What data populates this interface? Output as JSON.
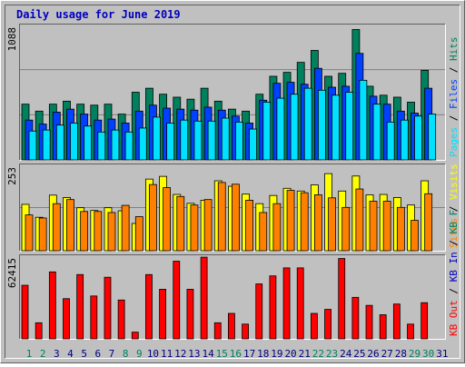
{
  "colors": {
    "frame_bg": "#c0c0c0",
    "title": "#0000c0",
    "hits": "#00805c",
    "files": "#0040ff",
    "pages": "#00e0ff",
    "visits": "#ffff00",
    "sites": "#ff8000",
    "kbytes": "#ff0000",
    "day_weekend": "#00805c",
    "day_weekday": "#000080",
    "legend_sep": "#000000",
    "kb_in": "#0000c0",
    "kb_out": "#00805c"
  },
  "chart_data": [
    {
      "type": "bar",
      "title": "Daily usage for June 2019",
      "ylabel": "1088",
      "ylim": [
        0,
        1088
      ],
      "categories": [
        "1",
        "2",
        "3",
        "4",
        "5",
        "6",
        "7",
        "8",
        "9",
        "10",
        "11",
        "12",
        "13",
        "14",
        "15",
        "16",
        "17",
        "18",
        "19",
        "20",
        "21",
        "22",
        "23",
        "24",
        "25",
        "26",
        "27",
        "28",
        "29",
        "30",
        "31"
      ],
      "weekend_days": [
        "1",
        "2",
        "8",
        "9",
        "15",
        "16",
        "22",
        "23",
        "29",
        "30"
      ],
      "series": [
        {
          "name": "Hits",
          "values": [
            448,
            392,
            448,
            472,
            448,
            440,
            448,
            368,
            544,
            576,
            528,
            504,
            488,
            576,
            472,
            408,
            392,
            528,
            672,
            704,
            784,
            880,
            672,
            696,
            1048,
            592,
            520,
            504,
            464,
            720,
            0
          ]
        },
        {
          "name": "Files",
          "values": [
            320,
            288,
            384,
            408,
            368,
            320,
            328,
            296,
            392,
            440,
            416,
            408,
            400,
            424,
            400,
            352,
            296,
            480,
            616,
            624,
            608,
            736,
            584,
            592,
            856,
            512,
            448,
            392,
            376,
            576,
            0
          ]
        },
        {
          "name": "Pages",
          "values": [
            232,
            240,
            280,
            296,
            272,
            224,
            240,
            224,
            256,
            344,
            296,
            320,
            312,
            312,
            336,
            304,
            248,
            464,
            496,
            528,
            576,
            560,
            520,
            544,
            640,
            448,
            304,
            320,
            352,
            368,
            0
          ]
        }
      ],
      "legend": [
        "Hits",
        "/",
        "Files",
        "/",
        "Pages"
      ]
    },
    {
      "type": "bar",
      "ylabel": "253",
      "ylim": [
        0,
        253
      ],
      "categories": [
        "1",
        "2",
        "3",
        "4",
        "5",
        "6",
        "7",
        "8",
        "9",
        "10",
        "11",
        "12",
        "13",
        "14",
        "15",
        "16",
        "17",
        "18",
        "19",
        "20",
        "21",
        "22",
        "23",
        "24",
        "25",
        "26",
        "27",
        "28",
        "29",
        "30",
        "31"
      ],
      "series": [
        {
          "name": "Visits",
          "values": [
            136,
            98,
            163,
            156,
            126,
            118,
            126,
            117,
            80,
            210,
            218,
            165,
            139,
            148,
            205,
            189,
            166,
            138,
            162,
            183,
            175,
            193,
            226,
            175,
            219,
            164,
            165,
            156,
            134,
            205,
            0
          ]
        },
        {
          "name": "Sites",
          "values": [
            105,
            96,
            138,
            150,
            115,
            115,
            112,
            133,
            100,
            194,
            185,
            159,
            134,
            150,
            200,
            195,
            148,
            112,
            138,
            177,
            170,
            164,
            155,
            127,
            181,
            145,
            145,
            127,
            89,
            167,
            0
          ]
        }
      ],
      "legend": [
        "Visits",
        "/",
        "Sites"
      ]
    },
    {
      "type": "bar",
      "ylabel": "62415",
      "ylim": [
        0,
        62415
      ],
      "categories": [
        "1",
        "2",
        "3",
        "4",
        "5",
        "6",
        "7",
        "8",
        "9",
        "10",
        "11",
        "12",
        "13",
        "14",
        "15",
        "16",
        "17",
        "18",
        "19",
        "20",
        "21",
        "22",
        "23",
        "24",
        "25",
        "26",
        "27",
        "28",
        "29",
        "30",
        "31"
      ],
      "series": [
        {
          "name": "KBytes",
          "values": [
            40000,
            12000,
            50000,
            30000,
            48000,
            32000,
            46000,
            29000,
            5000,
            48000,
            37000,
            58000,
            37000,
            61000,
            12000,
            19000,
            11000,
            41000,
            47000,
            53000,
            53000,
            19000,
            22000,
            60000,
            31000,
            25000,
            18000,
            26000,
            11000,
            27000,
            0
          ]
        }
      ],
      "legend": [
        "KB F",
        "/",
        "KB In",
        "/",
        "KB Out"
      ]
    }
  ]
}
